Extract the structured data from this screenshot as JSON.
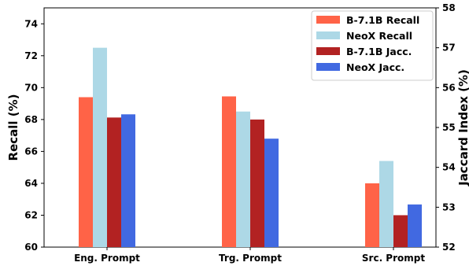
{
  "chart_data": {
    "type": "bar",
    "categories": [
      "Eng. Prompt",
      "Trg. Prompt",
      "Src. Prompt"
    ],
    "series": [
      {
        "name": "B-7.1B Recall",
        "axis": "left",
        "color": "#FF6347",
        "values": [
          69.4,
          69.45,
          64.0
        ]
      },
      {
        "name": "NeoX Recall",
        "axis": "left",
        "color": "#ADD8E6",
        "values": [
          72.5,
          68.5,
          65.4
        ]
      },
      {
        "name": "B-7.1B Jacc.",
        "axis": "right",
        "color": "#B22222",
        "values": [
          55.25,
          55.2,
          52.8
        ]
      },
      {
        "name": "NeoX Jacc.",
        "axis": "right",
        "color": "#4169E1",
        "values": [
          55.33,
          54.72,
          53.07
        ]
      }
    ],
    "ylabel": "Recall (%)",
    "y2label": "Jaccard Index (%)",
    "ylim": [
      60,
      75
    ],
    "y2lim": [
      52,
      58
    ],
    "yticks": [
      60,
      62,
      64,
      66,
      68,
      70,
      72,
      74
    ],
    "y2ticks": [
      52,
      53,
      54,
      55,
      56,
      57,
      58
    ],
    "legend_position": "top-right",
    "grid": false
  }
}
